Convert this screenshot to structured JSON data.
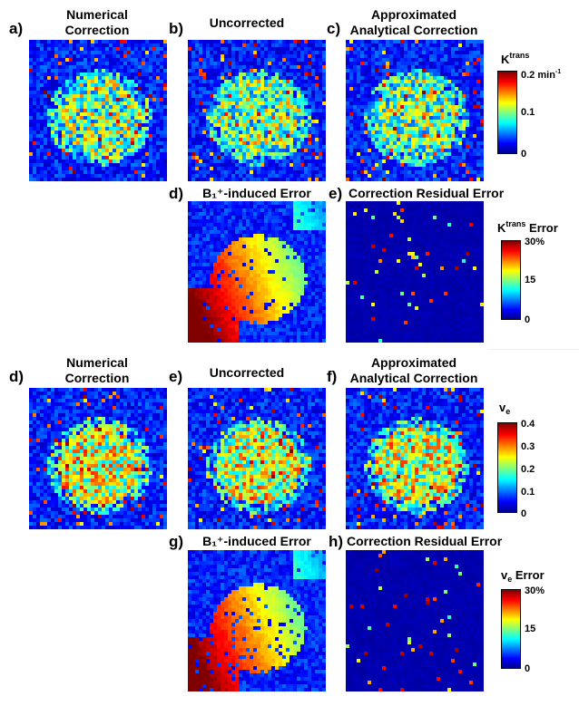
{
  "panels": [
    {
      "id": "a",
      "label": "a)",
      "title_lines": [
        "Numerical",
        "Correction"
      ],
      "map": "ktrans"
    },
    {
      "id": "b",
      "label": "b)",
      "title_lines": [
        "Uncorrected"
      ],
      "map": "ktrans"
    },
    {
      "id": "c",
      "label": "c)",
      "title_lines": [
        "Approximated",
        "Analytical Correction"
      ],
      "map": "ktrans"
    },
    {
      "id": "d1",
      "label": "d)",
      "title_lines": [
        "B₁⁺-induced Error"
      ],
      "map": "b1err"
    },
    {
      "id": "e1",
      "label": "e)",
      "title_lines": [
        "Correction Residual Error"
      ],
      "map": "resid"
    },
    {
      "id": "d2",
      "label": "d)",
      "title_lines": [
        "Numerical",
        "Correction"
      ],
      "map": "ve"
    },
    {
      "id": "e2",
      "label": "e)",
      "title_lines": [
        "Uncorrected"
      ],
      "map": "ve"
    },
    {
      "id": "f",
      "label": "f)",
      "title_lines": [
        "Approximated",
        "Analytical Correction"
      ],
      "map": "ve"
    },
    {
      "id": "g",
      "label": "g)",
      "title_lines": [
        "B₁⁺-induced Error"
      ],
      "map": "b1err"
    },
    {
      "id": "h",
      "label": "h)",
      "title_lines": [
        "Correction Residual Error"
      ],
      "map": "resid"
    }
  ],
  "colorbars": {
    "ktrans": {
      "title_main": "K",
      "title_sup": "trans",
      "ticks": [
        "0.2",
        "0.1",
        "0"
      ],
      "unit_main": "min",
      "unit_sup": "-1"
    },
    "ktrans_error": {
      "title_main": "K",
      "title_sup": "trans",
      "title_rest": " Error",
      "ticks": [
        "30",
        "15",
        "0"
      ],
      "unit": "%"
    },
    "ve": {
      "title_main": "v",
      "title_sub": "e",
      "ticks": [
        "0.4",
        "0.3",
        "0.2",
        "0.1",
        "0"
      ]
    },
    "ve_error": {
      "title_main": "v",
      "title_sub": "e",
      "title_rest": " Error",
      "ticks": [
        "30",
        "15",
        "0"
      ],
      "unit": "%"
    }
  },
  "colors": {
    "jet_low": "#00008f",
    "jet_mid": "#00ffff",
    "jet_high": "#800000",
    "background": "#ffffff"
  }
}
